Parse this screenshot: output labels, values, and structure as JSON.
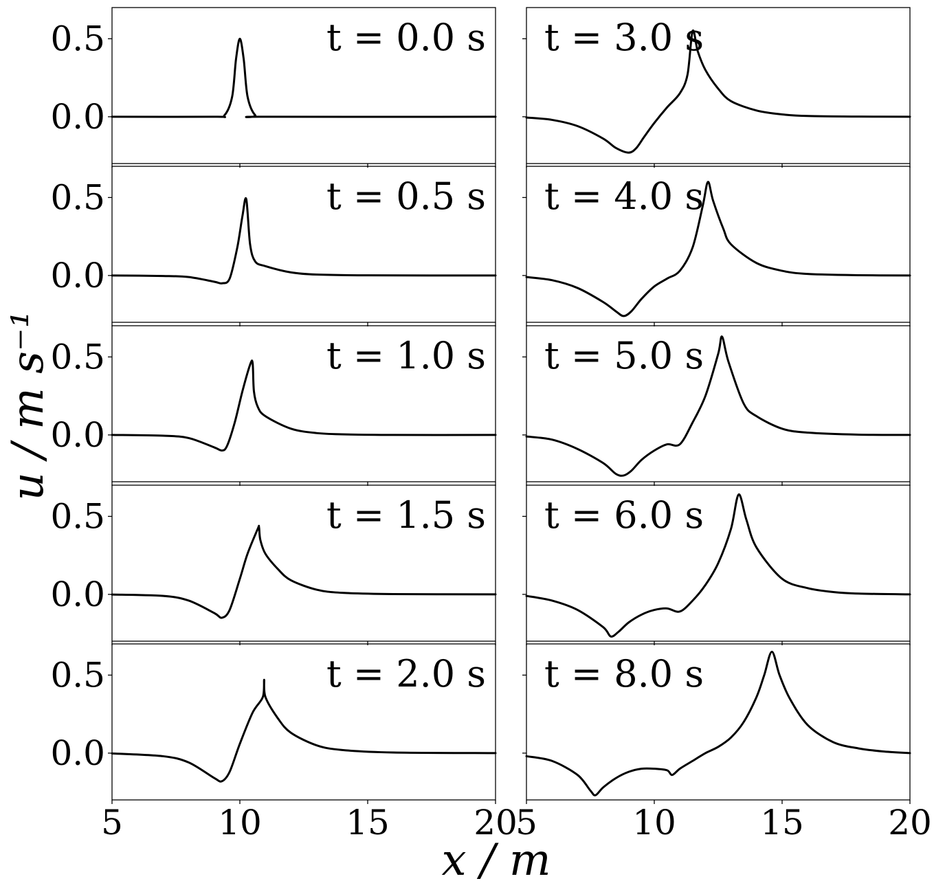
{
  "figure": {
    "ylabel": "u / m s⁻¹",
    "xlabel": "x / m"
  },
  "chart_data": {
    "type": "line",
    "xlabel": "x / m",
    "ylabel": "u / m s⁻¹",
    "xlim": [
      5,
      20
    ],
    "ylim": [
      -0.3,
      0.7
    ],
    "xticks": [
      5,
      10,
      15,
      20
    ],
    "xtick_labels": [
      "5",
      "10",
      "15",
      "20"
    ],
    "yticks": [
      0.0,
      0.5
    ],
    "ytick_labels": [
      "0.0",
      "0.5"
    ],
    "grid": false,
    "legend": "none",
    "line_color": "#000000",
    "layout": "5 rows x 2 columns, shared x-axis",
    "panels": [
      {
        "label": "t = 0.0 s",
        "col": 0,
        "row": 0,
        "x": [
          5,
          9,
          9.4,
          9.7,
          9.85,
          10,
          10.15,
          10.3,
          10.6,
          11,
          20
        ],
        "y": [
          0,
          0,
          0.01,
          0.13,
          0.37,
          0.5,
          0.37,
          0.13,
          0.01,
          0,
          0
        ]
      },
      {
        "label": "t = 0.5 s",
        "col": 0,
        "row": 1,
        "x": [
          5,
          7,
          8,
          9,
          9.3,
          9.6,
          9.9,
          10.1,
          10.25,
          10.4,
          10.6,
          11,
          12,
          13,
          15,
          20
        ],
        "y": [
          0,
          -0.003,
          -0.01,
          -0.04,
          -0.05,
          -0.02,
          0.18,
          0.38,
          0.49,
          0.2,
          0.09,
          0.06,
          0.02,
          0.006,
          0.001,
          0
        ]
      },
      {
        "label": "t = 1.0 s",
        "col": 0,
        "row": 2,
        "x": [
          5,
          7,
          8,
          9,
          9.3,
          9.5,
          9.8,
          10.1,
          10.4,
          10.5,
          10.55,
          10.7,
          11,
          12,
          13,
          14,
          16,
          20
        ],
        "y": [
          0,
          -0.005,
          -0.02,
          -0.08,
          -0.1,
          -0.07,
          0.08,
          0.28,
          0.45,
          0.46,
          0.28,
          0.18,
          0.12,
          0.04,
          0.012,
          0.004,
          0,
          0
        ]
      },
      {
        "label": "t = 1.5 s",
        "col": 0,
        "row": 3,
        "x": [
          5,
          7,
          8,
          9,
          9.3,
          9.6,
          10,
          10.3,
          10.7,
          10.75,
          10.8,
          11,
          11.5,
          12,
          13,
          14,
          16,
          20
        ],
        "y": [
          -0.001,
          -0.01,
          -0.04,
          -0.12,
          -0.15,
          -0.1,
          0.1,
          0.26,
          0.42,
          0.43,
          0.35,
          0.26,
          0.16,
          0.09,
          0.03,
          0.01,
          0.002,
          0
        ]
      },
      {
        "label": "t = 2.0 s",
        "col": 0,
        "row": 4,
        "x": [
          5,
          7,
          8,
          9,
          9.3,
          9.6,
          10,
          10.5,
          10.9,
          10.95,
          11,
          11.5,
          12,
          13,
          14,
          16,
          20
        ],
        "y": [
          -0.002,
          -0.02,
          -0.06,
          -0.16,
          -0.18,
          -0.12,
          0.06,
          0.26,
          0.36,
          0.47,
          0.36,
          0.22,
          0.13,
          0.05,
          0.02,
          0.004,
          0
        ]
      },
      {
        "label": "t = 3.0 s",
        "col": 1,
        "row": 0,
        "x": [
          5,
          6,
          7,
          8,
          8.5,
          9,
          9.3,
          9.6,
          10,
          10.5,
          11,
          11.3,
          11.5,
          11.7,
          12,
          12.5,
          13,
          14,
          15,
          16,
          18,
          20
        ],
        "y": [
          -0.005,
          -0.02,
          -0.06,
          -0.14,
          -0.2,
          -0.23,
          -0.2,
          -0.13,
          -0.04,
          0.06,
          0.15,
          0.27,
          0.55,
          0.42,
          0.3,
          0.18,
          0.1,
          0.04,
          0.015,
          0.005,
          0.001,
          0
        ]
      },
      {
        "label": "t = 4.0 s",
        "col": 1,
        "row": 1,
        "x": [
          5,
          6,
          7,
          8,
          8.5,
          8.8,
          9.1,
          9.5,
          10,
          10.5,
          11,
          11.5,
          11.9,
          12.1,
          12.3,
          12.7,
          13,
          14,
          15,
          16,
          18,
          20
        ],
        "y": [
          -0.01,
          -0.03,
          -0.08,
          -0.17,
          -0.23,
          -0.26,
          -0.23,
          -0.15,
          -0.07,
          -0.02,
          0.03,
          0.18,
          0.45,
          0.6,
          0.48,
          0.3,
          0.2,
          0.08,
          0.03,
          0.01,
          0.002,
          0
        ]
      },
      {
        "label": "t = 5.0 s",
        "col": 1,
        "row": 2,
        "x": [
          5,
          6,
          7,
          8,
          8.5,
          8.8,
          9.1,
          9.5,
          10,
          10.5,
          11,
          11.5,
          12,
          12.5,
          12.65,
          12.9,
          13.5,
          14,
          15,
          16,
          18,
          20
        ],
        "y": [
          -0.01,
          -0.03,
          -0.09,
          -0.18,
          -0.25,
          -0.26,
          -0.23,
          -0.16,
          -0.1,
          -0.06,
          -0.06,
          0.08,
          0.25,
          0.52,
          0.63,
          0.47,
          0.2,
          0.12,
          0.04,
          0.015,
          0.002,
          0
        ]
      },
      {
        "label": "t = 6.0 s",
        "col": 1,
        "row": 3,
        "x": [
          5,
          6,
          7,
          8,
          8.3,
          8.6,
          9,
          9.5,
          10,
          10.5,
          11,
          11.5,
          12,
          12.5,
          13,
          13.3,
          13.6,
          14,
          15,
          16,
          17,
          18,
          20
        ],
        "y": [
          -0.01,
          -0.04,
          -0.1,
          -0.21,
          -0.27,
          -0.24,
          -0.18,
          -0.13,
          -0.1,
          -0.09,
          -0.11,
          -0.04,
          0.06,
          0.2,
          0.42,
          0.64,
          0.48,
          0.3,
          0.1,
          0.04,
          0.015,
          0.005,
          0
        ]
      },
      {
        "label": "t = 8.0 s",
        "col": 1,
        "row": 4,
        "x": [
          5,
          6,
          7,
          7.5,
          7.7,
          8,
          8.5,
          9,
          9.5,
          10,
          10.5,
          10.7,
          11,
          11.5,
          12,
          12.5,
          13,
          13.5,
          14,
          14.3,
          14.6,
          14.9,
          15.3,
          16,
          17,
          18,
          19,
          20
        ],
        "y": [
          -0.02,
          -0.05,
          -0.14,
          -0.24,
          -0.27,
          -0.22,
          -0.16,
          -0.12,
          -0.1,
          -0.1,
          -0.11,
          -0.14,
          -0.1,
          -0.05,
          0,
          0.04,
          0.1,
          0.2,
          0.36,
          0.5,
          0.65,
          0.5,
          0.35,
          0.18,
          0.07,
          0.03,
          0.01,
          0
        ]
      }
    ]
  }
}
